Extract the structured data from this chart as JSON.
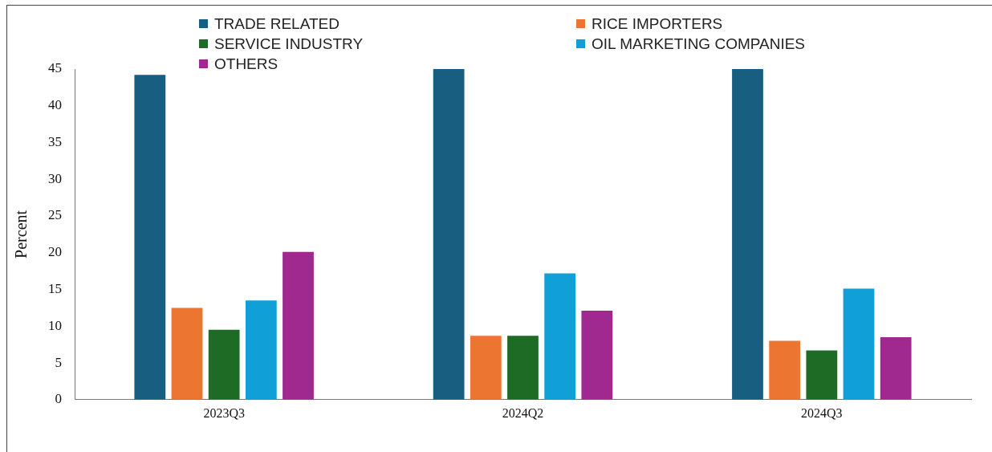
{
  "chart_data": {
    "type": "bar",
    "ylabel": "Percent",
    "categories": [
      "2023Q3",
      "2024Q2",
      "2024Q3"
    ],
    "series": [
      {
        "name": "TRADE RELATED",
        "color": "#175e80",
        "values": [
          44.2,
          45,
          45
        ]
      },
      {
        "name": "RICE IMPORTERS",
        "color": "#ed7532",
        "values": [
          12.5,
          8.7,
          8.0
        ]
      },
      {
        "name": "SERVICE INDUSTRY",
        "color": "#1e6b25",
        "values": [
          9.5,
          8.7,
          6.7
        ]
      },
      {
        "name": "OIL MARKETING COMPANIES",
        "color": "#119fd8",
        "values": [
          13.5,
          17.2,
          15.1
        ]
      },
      {
        "name": "OTHERS",
        "color": "#a0298f",
        "values": [
          20.1,
          12.1,
          8.5
        ]
      }
    ],
    "ylim": [
      0,
      45
    ],
    "yticks": [
      0,
      5,
      10,
      15,
      20,
      25,
      30,
      35,
      40,
      45
    ],
    "grid": false,
    "legend": "top"
  }
}
